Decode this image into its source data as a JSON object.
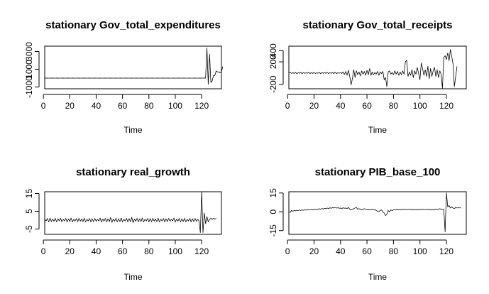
{
  "chart_data": [
    {
      "type": "line",
      "title": "stationary Gov_total_expenditures",
      "xlabel": "Time",
      "ylabel": "",
      "xlim": [
        1,
        135
      ],
      "ylim": [
        -1200,
        3600
      ],
      "xticks": [
        0,
        20,
        40,
        60,
        80,
        100,
        120
      ],
      "yticks": [
        -1000,
        1000,
        3000
      ],
      "x_start": 1,
      "values": [
        0,
        3,
        -3,
        2,
        -2,
        4,
        -4,
        1,
        -1,
        3,
        -3,
        2,
        -2,
        5,
        -5,
        1,
        -1,
        3,
        -3,
        2,
        -2,
        4,
        -4,
        1,
        -1,
        3,
        -3,
        2,
        -2,
        4,
        -4,
        1,
        -1,
        3,
        -3,
        2,
        -2,
        4,
        -4,
        1,
        -1,
        3,
        -3,
        2,
        -2,
        4,
        -4,
        1,
        -1,
        3,
        -3,
        2,
        -2,
        4,
        -4,
        1,
        -1,
        3,
        -3,
        2,
        -2,
        4,
        -4,
        1,
        -1,
        3,
        -3,
        2,
        -2,
        4,
        -4,
        1,
        -1,
        3,
        -3,
        2,
        -2,
        4,
        -4,
        1,
        -1,
        3,
        -3,
        2,
        -2,
        4,
        -4,
        1,
        -1,
        3,
        -3,
        2,
        -2,
        4,
        -4,
        1,
        -1,
        3,
        -3,
        2,
        -2,
        4,
        -4,
        1,
        -1,
        3,
        -3,
        2,
        -2,
        4,
        -4,
        1,
        -1,
        3,
        -3,
        2,
        -2,
        4,
        -4,
        1,
        -1,
        3,
        -3,
        3400,
        -700,
        2700,
        -500,
        -300,
        300,
        300,
        800,
        700,
        700,
        600,
        700,
        1300
      ]
    },
    {
      "type": "line",
      "title": "stationary Gov_total_receipts",
      "xlabel": "Time",
      "ylabel": "",
      "xlim": [
        1,
        135
      ],
      "ylim": [
        -280,
        480
      ],
      "xticks": [
        0,
        20,
        40,
        60,
        80,
        100,
        120
      ],
      "yticks": [
        -200,
        200,
        400
      ],
      "x_start": 1,
      "values": [
        0,
        10,
        -5,
        8,
        -8,
        12,
        -10,
        5,
        -3,
        15,
        -12,
        10,
        -7,
        6,
        -4,
        14,
        -9,
        7,
        -6,
        11,
        -8,
        5,
        -4,
        12,
        -10,
        9,
        -5,
        8,
        -6,
        13,
        -9,
        6,
        -3,
        10,
        -8,
        14,
        -11,
        6,
        -4,
        9,
        -7,
        20,
        -25,
        30,
        -40,
        50,
        -60,
        -210,
        -100,
        60,
        -80,
        40,
        -30,
        20,
        -50,
        40,
        -20,
        30,
        -40,
        50,
        -30,
        80,
        -40,
        20,
        -30,
        10,
        -20,
        30,
        -40,
        20,
        -10,
        30,
        -120,
        -80,
        -240,
        20,
        40,
        -20,
        10,
        -30,
        40,
        -20,
        30,
        -40,
        20,
        -30,
        40,
        -20,
        200,
        230,
        -60,
        20,
        -40,
        60,
        -80,
        40,
        -20,
        100,
        -10,
        -120,
        180,
        80,
        -40,
        60,
        -60,
        120,
        -100,
        80,
        -60,
        40,
        100,
        -60,
        60,
        -80,
        40,
        -20,
        -270,
        280,
        310,
        240,
        360,
        220,
        420,
        300,
        160,
        -240,
        -60,
        120
      ]
    },
    {
      "type": "line",
      "title": "stationary real_growth",
      "xlabel": "Time",
      "ylabel": "",
      "xlim": [
        1,
        135
      ],
      "ylim": [
        -8,
        16
      ],
      "xticks": [
        0,
        20,
        40,
        60,
        80,
        100,
        120
      ],
      "yticks": [
        -5,
        5,
        15
      ],
      "x_start": 1,
      "values": [
        0.5,
        -0.5,
        1,
        -1,
        1.2,
        -0.8,
        0.6,
        -0.6,
        1,
        -1,
        0.8,
        -0.4,
        1.1,
        -0.9,
        0.5,
        -0.5,
        1,
        -1,
        0.7,
        -0.7,
        1.2,
        -1,
        0.5,
        -0.5,
        0.9,
        -0.9,
        1,
        -0.6,
        0.6,
        -0.8,
        1.1,
        -1,
        0.5,
        -0.5,
        1,
        -1,
        0.8,
        -0.8,
        1,
        -0.6,
        0.5,
        -0.5,
        1.2,
        -1.1,
        0.6,
        -0.6,
        1,
        -1,
        0.8,
        -0.8,
        1.5,
        -1.2,
        0.6,
        -0.6,
        1,
        -1,
        0.8,
        -0.8,
        1.2,
        -1,
        0.5,
        -0.5,
        1,
        -1,
        0.9,
        -0.9,
        1.6,
        -1.4,
        0.6,
        -0.6,
        1,
        -1,
        0.8,
        -0.8,
        1.2,
        -1,
        0.5,
        -0.5,
        1,
        -1,
        0.9,
        -0.9,
        1,
        -0.6,
        0.6,
        -0.8,
        1.1,
        -1,
        0.5,
        -0.5,
        1,
        -1,
        0.8,
        -0.8,
        1,
        -0.6,
        0.5,
        -0.5,
        1.2,
        -1.1,
        0.6,
        -0.6,
        1,
        -1,
        0.8,
        -0.8,
        1,
        -1,
        0.5,
        -0.5,
        1,
        -1,
        0.8,
        -0.8,
        1,
        -0.6,
        0.5,
        -0.5,
        -7,
        16,
        -7,
        4,
        -2,
        2,
        -1,
        0.5,
        1,
        0.5,
        1,
        0.6,
        1
      ]
    },
    {
      "type": "line",
      "title": "stationary PIB_base_100",
      "xlabel": "Time",
      "ylabel": "",
      "xlim": [
        1,
        135
      ],
      "ylim": [
        -18,
        16
      ],
      "xticks": [
        0,
        20,
        40,
        60,
        80,
        100,
        120
      ],
      "yticks": [
        -15,
        0,
        15
      ],
      "x_start": 1,
      "values": [
        0,
        -0.5,
        1,
        0.5,
        1,
        0.8,
        1.2,
        1,
        1.4,
        1.1,
        1.5,
        1.2,
        1.6,
        1.3,
        1.8,
        1.5,
        1.6,
        1.9,
        1.4,
        2,
        1.7,
        2.2,
        1.8,
        2.5,
        2,
        2.6,
        2.2,
        2.8,
        2.4,
        3,
        2.6,
        3.2,
        2.8,
        3.4,
        3,
        3.5,
        3,
        3.2,
        2.8,
        3,
        2.6,
        3.2,
        2.8,
        3,
        2.6,
        3.5,
        2,
        1.5,
        2,
        2.5,
        3,
        3.5,
        2,
        2.5,
        2,
        1.5,
        2,
        2.5,
        2,
        1.8,
        2,
        1.5,
        1.8,
        2,
        1.5,
        1.8,
        1,
        0.5,
        0,
        1,
        1.5,
        0,
        -1,
        -3,
        -2,
        1,
        0,
        1.5,
        1,
        1.5,
        2,
        1.5,
        2,
        1.5,
        2,
        1.5,
        2,
        1.8,
        2,
        1.6,
        2,
        1.8,
        2,
        1.5,
        2,
        1.5,
        2,
        1.5,
        2,
        1.5,
        2,
        1.8,
        2,
        1.6,
        2,
        1.8,
        2,
        1.5,
        2,
        1.5,
        2,
        2,
        2,
        2,
        2.5,
        2,
        2,
        2,
        -16,
        15,
        4,
        5,
        3,
        4,
        3,
        2.5,
        3.5,
        3,
        3.5,
        3,
        3.5
      ]
    }
  ]
}
